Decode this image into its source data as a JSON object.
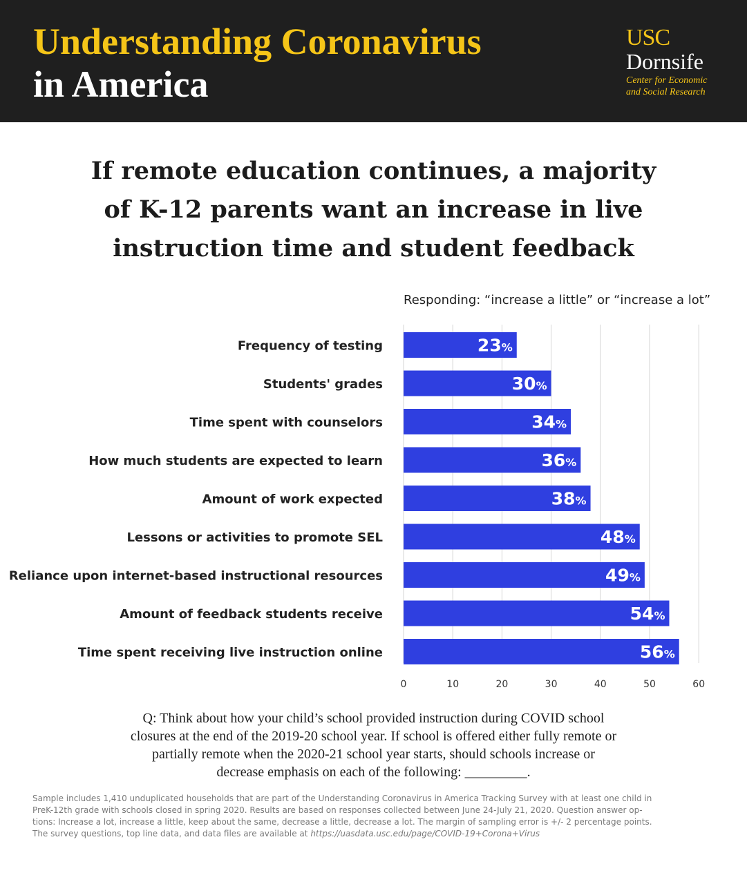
{
  "header": {
    "title_line1": "Understanding Coronavirus",
    "title_line2": "in America",
    "logo": {
      "usc": "USC",
      "dornsife": "Dornsife",
      "sub_line1": "Center for Economic",
      "sub_line2": "and Social Research"
    }
  },
  "headline": {
    "line1": "If remote education continues, a majority",
    "line2": "of K-12 parents want an increase in live",
    "line3": "instruction time and student feedback"
  },
  "chart_subtitle": "Responding: “increase a little” or “increase a lot”",
  "chart_data": {
    "type": "bar",
    "orientation": "horizontal",
    "categories": [
      "Frequency of testing",
      "Students' grades",
      "Time spent with counselors",
      "How much students are expected to learn",
      "Amount of work expected",
      "Lessons or activities to promote SEL",
      "Reliance upon internet-based instructional resources",
      "Amount of feedback students receive",
      "Time spent receiving live instruction online"
    ],
    "values": [
      23,
      30,
      34,
      36,
      38,
      48,
      49,
      54,
      56
    ],
    "value_suffix": "%",
    "xlim": [
      0,
      60
    ],
    "xticks": [
      "0",
      "10",
      "20",
      "30",
      "40",
      "50",
      "60"
    ],
    "grid": true,
    "bar_color": "#2f3fe0"
  },
  "question": {
    "line1": "Q: Think about how your child’s school provided instruction during COVID school",
    "line2": "closures at the end of the 2019-20 school year. If school is offered either fully remote or",
    "line3": "partially remote when the 2020-21 school year starts, should schools increase or",
    "line4": "decrease emphasis on each of the following: _________."
  },
  "footnote": {
    "line1": "Sample includes 1,410 unduplicated households that are part of the Understanding Coronavirus in America Tracking Survey with at least one child in",
    "line2": "PreK-12th grade with schools closed in spring 2020. Results are based on responses collected between June 24-July 21, 2020.  Question answer op-",
    "line3": "tions: Increase a lot, increase a little, keep about the same, decrease a little, decrease a lot. The margin of sampling error is +/- 2 percentage points.",
    "line4_text": "The survey questions, top line data, and data files are available at ",
    "line4_url": "https://uasdata.usc.edu/page/COVID-19+Corona+Virus"
  }
}
